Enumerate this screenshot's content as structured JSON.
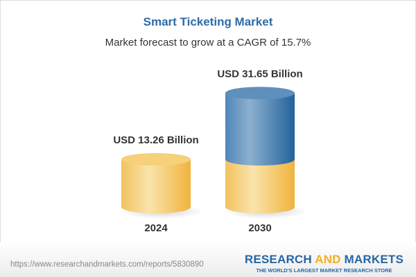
{
  "chart_data": {
    "type": "bar",
    "style": "3d-cylinder",
    "title": "Smart Ticketing Market",
    "subtitle": "Market forecast to grow at a CAGR of 15.7%",
    "categories": [
      "2024",
      "2030"
    ],
    "values": [
      13.26,
      31.65
    ],
    "data_labels": [
      "USD 13.26 Billion",
      "USD 31.65 Billion"
    ],
    "unit": "USD Billion",
    "colors": {
      "base": "#f3c259",
      "growth": "#3f7bb0",
      "title": "#2b6ca8"
    },
    "grid": false
  },
  "footer": {
    "url": "https://www.researchandmarkets.com/reports/5830890",
    "logo_part1": "RESEARCH ",
    "logo_part2": "AND",
    "logo_part3": " MARKETS",
    "logo_tagline": "THE WORLD'S LARGEST MARKET RESEARCH STORE"
  }
}
